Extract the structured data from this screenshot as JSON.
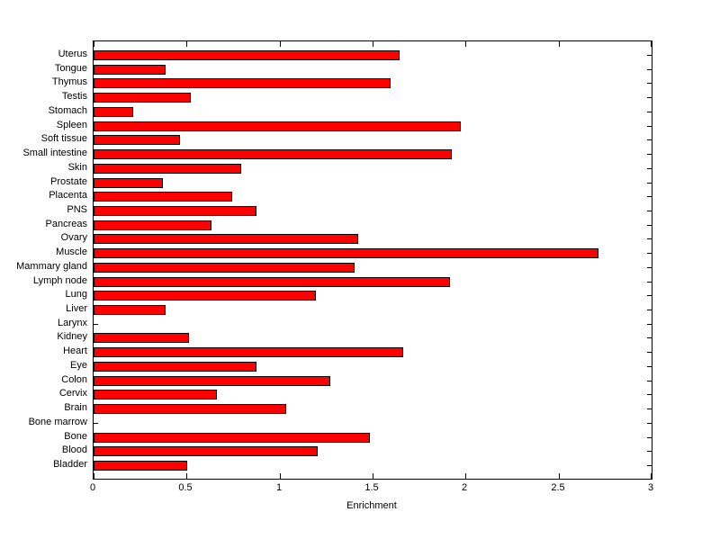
{
  "chart_data": {
    "type": "bar",
    "orientation": "horizontal",
    "title": "",
    "xlabel": "Enrichment",
    "ylabel": "",
    "xlim": [
      0,
      3
    ],
    "x_ticks": [
      0,
      0.5,
      1,
      1.5,
      2,
      2.5,
      3
    ],
    "x_tick_labels": [
      "0",
      "0.5",
      "1",
      "1.5",
      "2",
      "2.5",
      "3"
    ],
    "categories": [
      "Uterus",
      "Tongue",
      "Thymus",
      "Testis",
      "Stomach",
      "Spleen",
      "Soft tissue",
      "Small intestine",
      "Skin",
      "Prostate",
      "Placenta",
      "PNS",
      "Pancreas",
      "Ovary",
      "Muscle",
      "Mammary gland",
      "Lymph node",
      "Lung",
      "Liver",
      "Larynx",
      "Kidney",
      "Heart",
      "Eye",
      "Colon",
      "Cervix",
      "Brain",
      "Bone marrow",
      "Bone",
      "Blood",
      "Bladder"
    ],
    "values": [
      1.64,
      0.38,
      1.59,
      0.52,
      0.21,
      1.97,
      0.46,
      1.92,
      0.79,
      0.37,
      0.74,
      0.87,
      0.63,
      1.42,
      2.71,
      1.4,
      1.91,
      1.19,
      0.38,
      0,
      0.51,
      1.66,
      0.87,
      1.27,
      0.66,
      1.03,
      0,
      1.48,
      1.2,
      0.5
    ],
    "grid": false,
    "legend_position": "none",
    "colors": {
      "bar_fill": "#FF0000",
      "bar_edge": "#000000",
      "axis": "#000000",
      "background": "#FFFFFF",
      "text": "#000000"
    }
  }
}
